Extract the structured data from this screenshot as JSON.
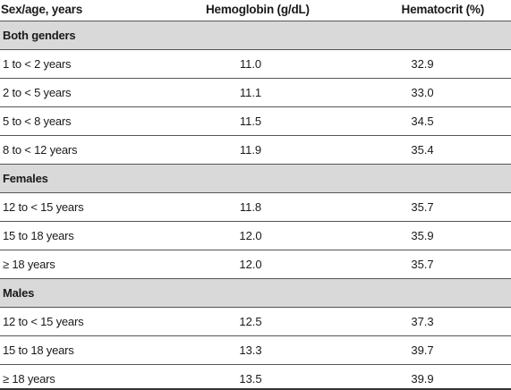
{
  "table": {
    "headers": {
      "col1": "Sex/age, years",
      "col2": "Hemoglobin (g/dL)",
      "col3": "Hematocrit (%)"
    },
    "sections": [
      {
        "label": "Both genders",
        "rows": [
          {
            "age": "1 to < 2 years",
            "hemoglobin": "11.0",
            "hematocrit": "32.9"
          },
          {
            "age": "2 to < 5 years",
            "hemoglobin": "11.1",
            "hematocrit": "33.0"
          },
          {
            "age": "5 to < 8 years",
            "hemoglobin": "11.5",
            "hematocrit": "34.5"
          },
          {
            "age": "8 to < 12 years",
            "hemoglobin": "11.9",
            "hematocrit": "35.4"
          }
        ]
      },
      {
        "label": "Females",
        "rows": [
          {
            "age": "12 to < 15 years",
            "hemoglobin": "11.8",
            "hematocrit": "35.7"
          },
          {
            "age": "15 to 18 years",
            "hemoglobin": "12.0",
            "hematocrit": "35.9"
          },
          {
            "age": "≥ 18 years",
            "hemoglobin": "12.0",
            "hematocrit": "35.7"
          }
        ]
      },
      {
        "label": "Males",
        "rows": [
          {
            "age": "12 to < 15 years",
            "hemoglobin": "12.5",
            "hematocrit": "37.3"
          },
          {
            "age": "15 to 18 years",
            "hemoglobin": "13.3",
            "hematocrit": "39.7"
          },
          {
            "age": "≥ 18 years",
            "hemoglobin": "13.5",
            "hematocrit": "39.9"
          }
        ]
      }
    ]
  }
}
